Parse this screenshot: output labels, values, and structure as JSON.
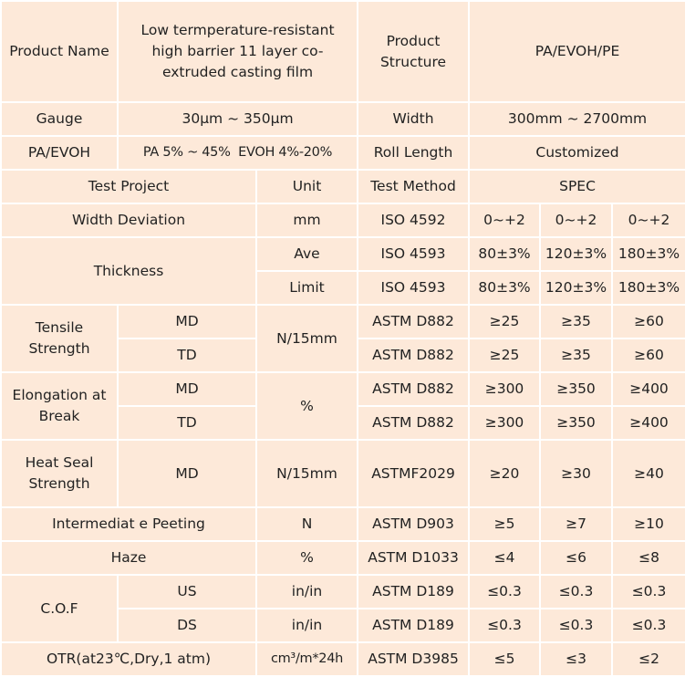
{
  "colors": {
    "cell_background": "#fde9d9",
    "border": "#ffffff",
    "accent": "#6dbb3a",
    "text": "#222222"
  },
  "header": {
    "product_name_label": "Product Name",
    "product_name_value": "Low termperature-resistant high barrier 11 layer co-extruded casting film",
    "product_structure_label": "Product Structure",
    "product_structure_value": "PA/EVOH/PE",
    "gauge_label": "Gauge",
    "gauge_value": "30μm ~ 350μm",
    "width_label": "Width",
    "width_value": "300mm ~ 2700mm",
    "pa_evoh_label": "PA/EVOH",
    "pa_evoh_value": "PA 5% ~ 45%  EVOH 4%-20%",
    "roll_length_label": "Roll Length",
    "roll_length_value": "Customized"
  },
  "columns": {
    "test_project": "Test Project",
    "unit": "Unit",
    "test_method": "Test Method",
    "spec": "SPEC"
  },
  "rows": {
    "width_deviation": {
      "label": "Width Deviation",
      "unit": "mm",
      "method": "ISO 4592",
      "values": [
        "0~+2",
        "0~+2",
        "0~+2"
      ]
    },
    "thickness": {
      "label": "Thickness",
      "ave": {
        "label": "Ave",
        "method": "ISO 4593",
        "values": [
          "80±3%",
          "120±3%",
          "180±3%"
        ]
      },
      "limit": {
        "label": "Limit",
        "method": "ISO 4593",
        "values": [
          "80±3%",
          "120±3%",
          "180±3%"
        ]
      }
    },
    "tensile_strength": {
      "label": "Tensile Strength",
      "unit": "N/15mm",
      "md": {
        "label": "MD",
        "method": "ASTM D882",
        "values": [
          "≥25",
          "≥35",
          "≥60"
        ]
      },
      "td": {
        "label": "TD",
        "method": "ASTM D882",
        "values": [
          "≥25",
          "≥35",
          "≥60"
        ]
      }
    },
    "elongation": {
      "label": "Elongation at Break",
      "unit": "%",
      "md": {
        "label": "MD",
        "method": "ASTM D882",
        "values": [
          "≥300",
          "≥350",
          "≥400"
        ]
      },
      "td": {
        "label": "TD",
        "method": "ASTM D882",
        "values": [
          "≥300",
          "≥350",
          "≥400"
        ]
      }
    },
    "heat_seal": {
      "label": "Heat Seal Strength",
      "sub": "MD",
      "unit": "N/15mm",
      "method": "ASTMF2029",
      "values": [
        "≥20",
        "≥30",
        "≥40"
      ]
    },
    "intermediate_peeling": {
      "label": "Intermediat e Peeting",
      "unit": "N",
      "method": "ASTM D903",
      "values": [
        "≥5",
        "≥7",
        "≥10"
      ]
    },
    "haze": {
      "label": "Haze",
      "unit": "%",
      "method": "ASTM D1033",
      "values": [
        "≤4",
        "≤6",
        "≤8"
      ]
    },
    "cof": {
      "label": "C.O.F",
      "us": {
        "label": "US",
        "unit": "in/in",
        "method": "ASTM D189",
        "values": [
          "≤0.3",
          "≤0.3",
          "≤0.3"
        ]
      },
      "ds": {
        "label": "DS",
        "unit": "in/in",
        "method": "ASTM D189",
        "values": [
          "≤0.3",
          "≤0.3",
          "≤0.3"
        ]
      }
    },
    "otr": {
      "label": "OTR(at23℃,Dry,1 atm)",
      "unit": "cm³/m*24h",
      "method": "ASTM D3985",
      "values": [
        "≤5",
        "≤3",
        "≤2"
      ]
    }
  }
}
